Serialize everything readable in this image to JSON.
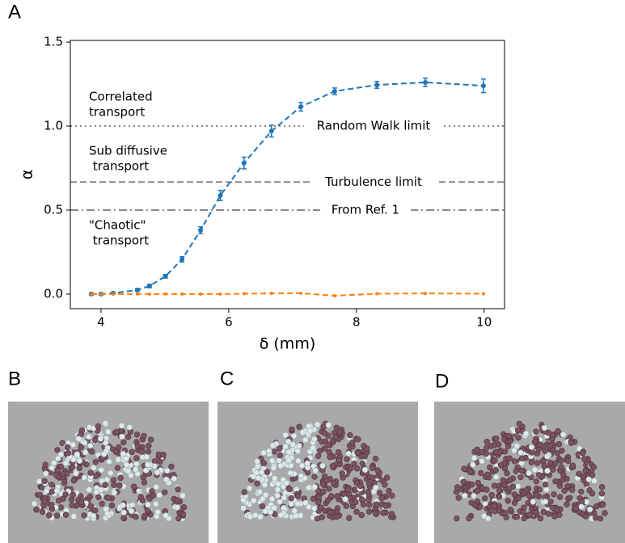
{
  "chart_data": {
    "type": "line",
    "panel_labels": [
      "A",
      "B",
      "C",
      "D"
    ],
    "xlabel": "δ (mm)",
    "ylabel": "α",
    "xlim": [
      3.52,
      10.32
    ],
    "ylim": [
      -0.087,
      1.51
    ],
    "xticks": [
      4,
      6,
      8,
      10
    ],
    "yticks": [
      {
        "value": 0,
        "label": "0.0"
      },
      0.5,
      {
        "value": 1,
        "label": "1.0"
      },
      1.5
    ],
    "series": [
      {
        "color": "#1f77b4",
        "x": [
          3.85,
          4.0,
          4.19,
          4.57,
          4.76,
          5.01,
          5.27,
          5.56,
          5.87,
          6.24,
          6.67,
          7.13,
          7.66,
          8.32,
          9.08,
          9.99
        ],
        "values": [
          0.0,
          0.0,
          0.005,
          0.024,
          0.048,
          0.106,
          0.207,
          0.38,
          0.587,
          0.78,
          0.97,
          1.115,
          1.207,
          1.245,
          1.26,
          1.24
        ],
        "errors": [
          0.005,
          0.005,
          0.005,
          0.008,
          0.01,
          0.01,
          0.015,
          0.02,
          0.03,
          0.035,
          0.035,
          0.025,
          0.02,
          0.02,
          0.025,
          0.04
        ]
      },
      {
        "color": "#ff7f0e",
        "x": [
          3.85,
          4.0,
          4.19,
          4.57,
          4.76,
          5.01,
          5.27,
          5.56,
          5.87,
          6.24,
          6.67,
          7.13,
          7.66,
          8.32,
          9.08,
          9.99
        ],
        "values": [
          0.0,
          0.0,
          0.0,
          0.0,
          0.0,
          0.0,
          0.0,
          0.0,
          0.0,
          0.002,
          0.004,
          0.005,
          -0.01,
          0.002,
          0.004,
          0.002
        ]
      }
    ],
    "reference_lines": [
      {
        "value": 1.0,
        "label": "Random Walk limit",
        "style": "dotted",
        "color": "#888888"
      },
      {
        "value": 0.667,
        "label": "Turbulence limit",
        "style": "dashed",
        "color": "#888888"
      },
      {
        "value": 0.5,
        "label": "From Ref. 1",
        "style": "dashdot",
        "color": "#888888"
      }
    ],
    "annotations": [
      {
        "lines": [
          "Correlated",
          "transport"
        ]
      },
      {
        "lines": [
          "Sub diffusive",
          " transport"
        ]
      },
      {
        "lines": [
          "\"Chaotic\"",
          " transport"
        ]
      }
    ]
  }
}
